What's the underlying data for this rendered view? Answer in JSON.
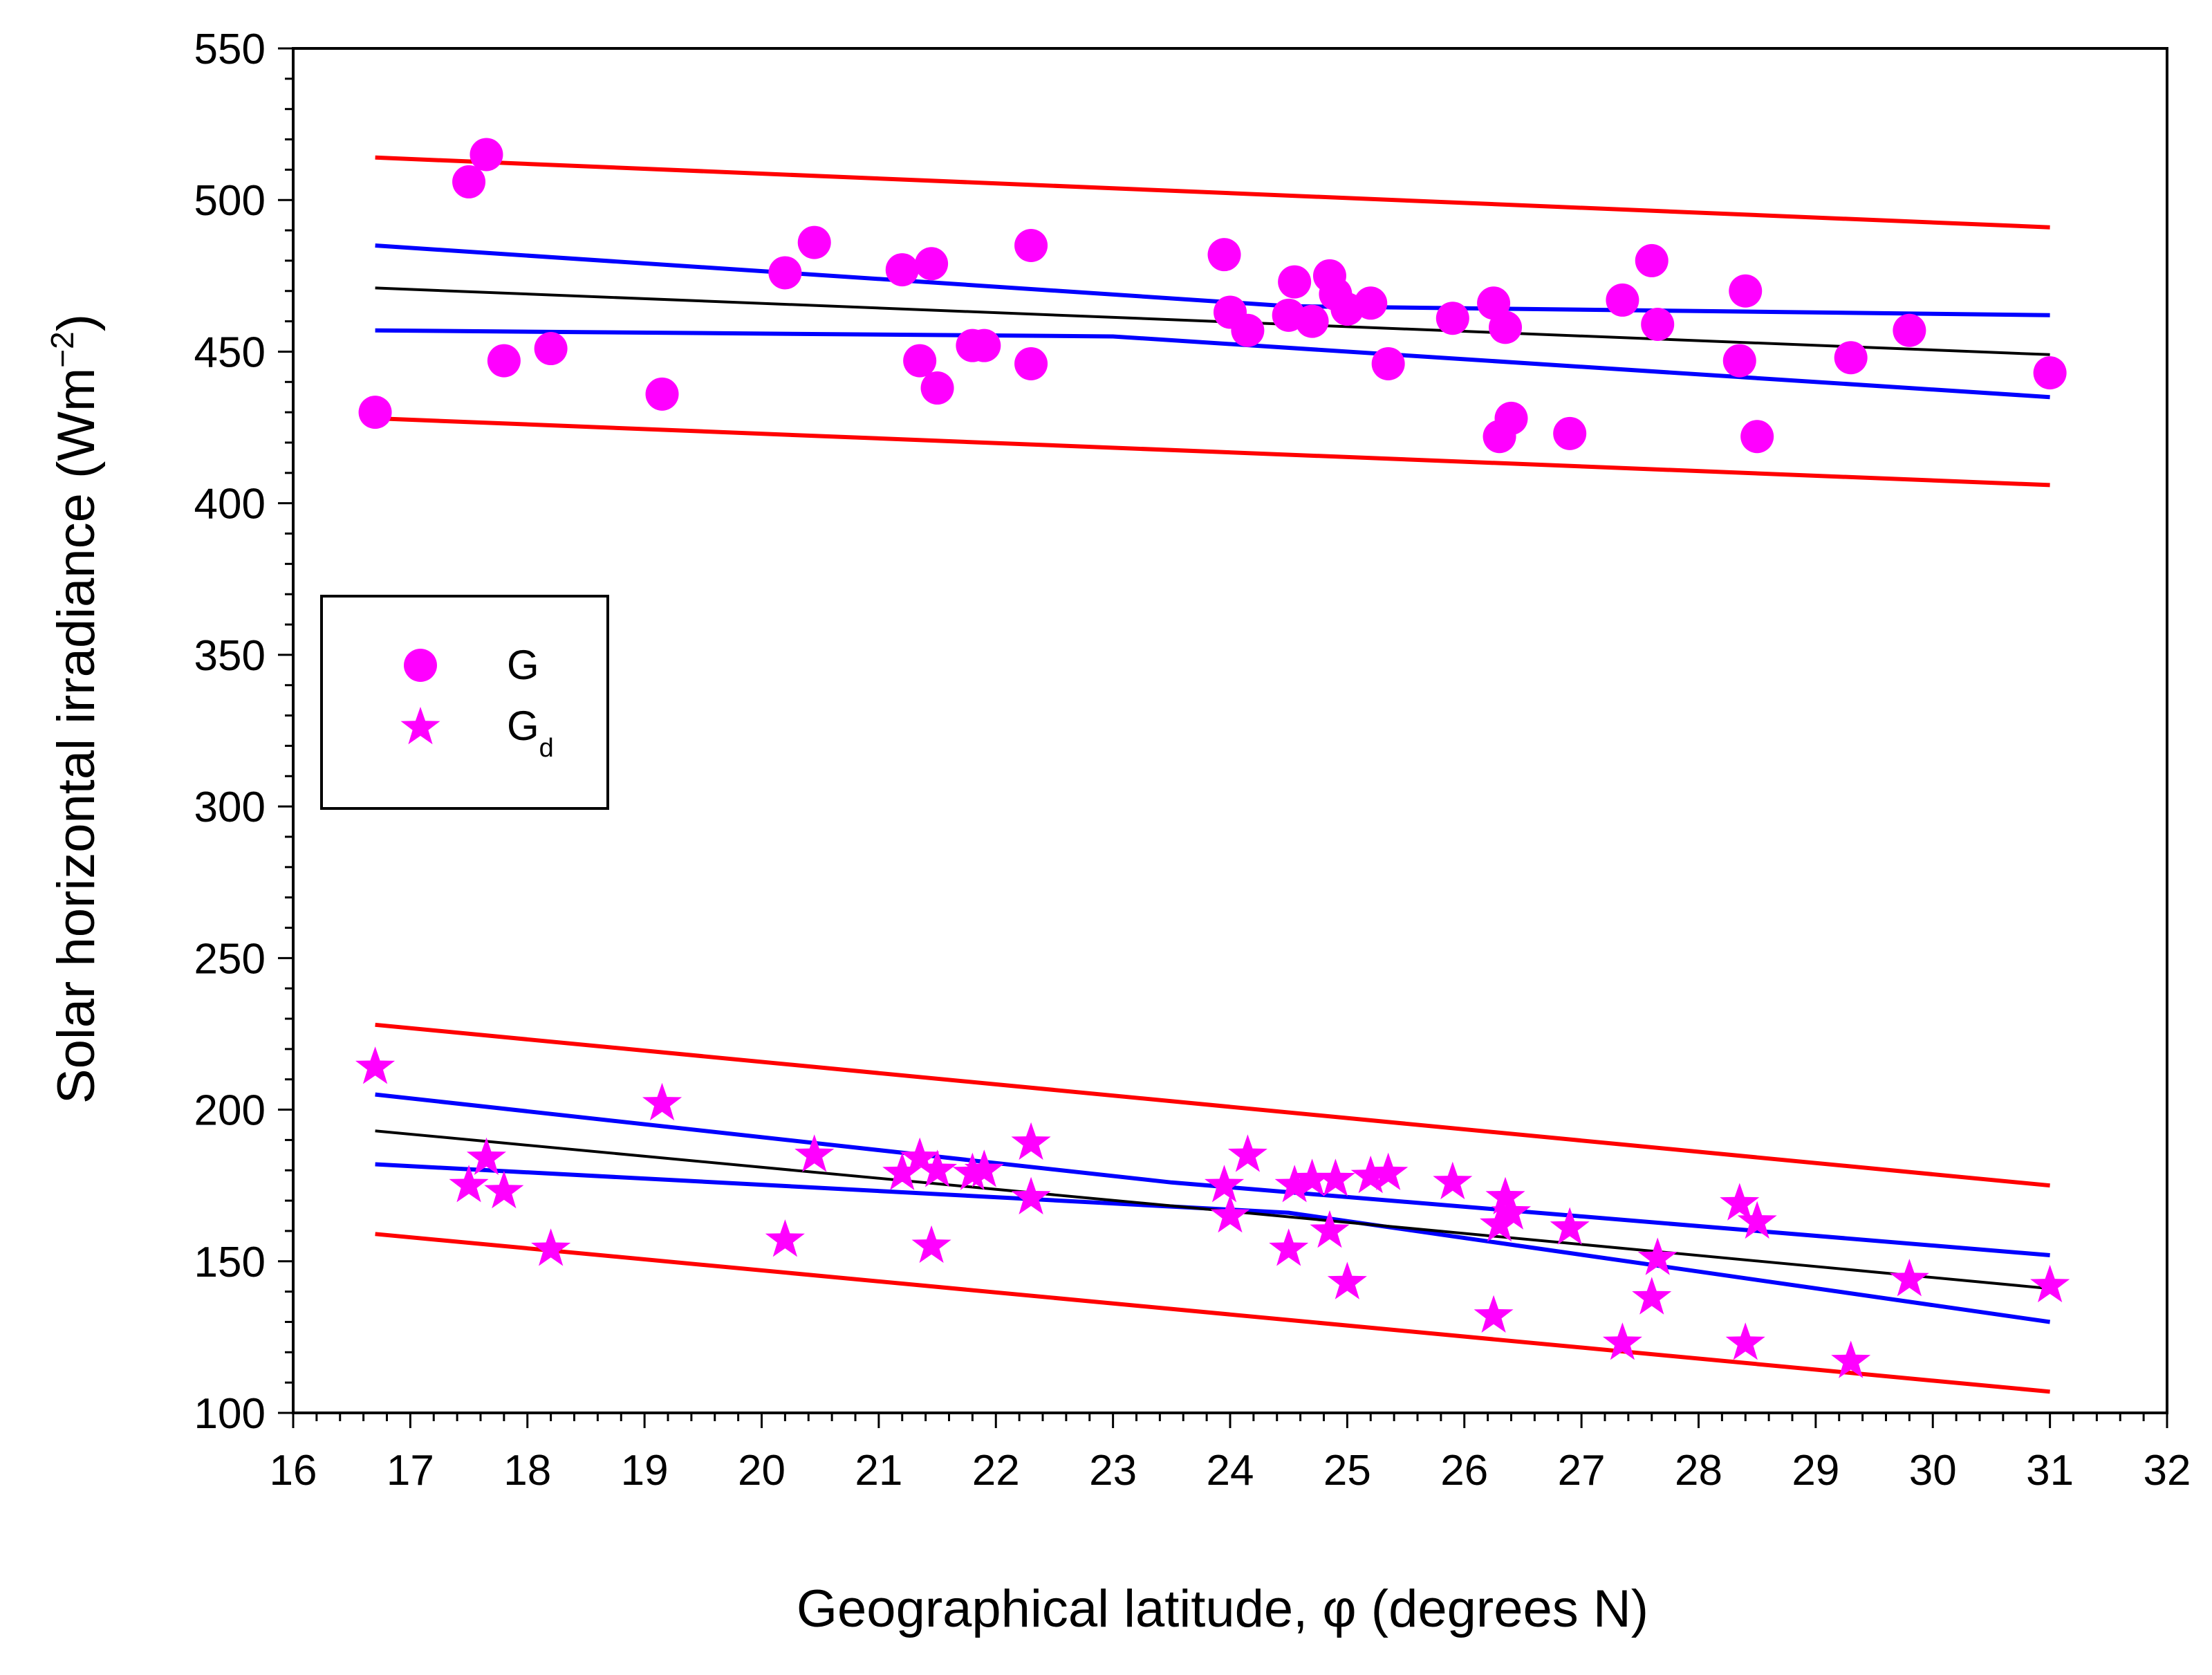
{
  "chart_data": {
    "type": "scatter",
    "xlabel": "Geographical latitude, φ (degrees N)",
    "ylabel": "Solar horizontal irradiance (Wm",
    "ylabel_sup": "−2",
    "ylabel_close": ")",
    "xlim": [
      16,
      32
    ],
    "ylim": [
      100,
      550
    ],
    "xticks": [
      16,
      17,
      18,
      19,
      20,
      21,
      22,
      23,
      24,
      25,
      26,
      27,
      28,
      29,
      30,
      31,
      32
    ],
    "yticks": [
      100,
      150,
      200,
      250,
      300,
      350,
      400,
      450,
      500,
      550
    ],
    "x_minor_step": 0.2,
    "y_minor_step": 10,
    "legend": {
      "position": "middle-left",
      "entries": [
        {
          "series": "G",
          "label": "G",
          "sub": "",
          "marker": "circle"
        },
        {
          "series": "Gd",
          "label": "G",
          "sub": "d",
          "marker": "star"
        }
      ]
    },
    "colors": {
      "marker": "#ff00ff",
      "regression": "#000000",
      "confidence": "#0000ff",
      "prediction": "#ff0000",
      "frame": "#000000"
    },
    "series": [
      {
        "name": "G",
        "marker": "circle",
        "points": [
          [
            16.7,
            430
          ],
          [
            17.5,
            506
          ],
          [
            17.65,
            515
          ],
          [
            17.8,
            447
          ],
          [
            18.2,
            451
          ],
          [
            19.15,
            436
          ],
          [
            20.2,
            476
          ],
          [
            20.45,
            486
          ],
          [
            21.2,
            477
          ],
          [
            21.35,
            447
          ],
          [
            21.45,
            479
          ],
          [
            21.5,
            438
          ],
          [
            21.8,
            452
          ],
          [
            21.9,
            452
          ],
          [
            22.3,
            485
          ],
          [
            22.3,
            446
          ],
          [
            23.95,
            482
          ],
          [
            24.0,
            463
          ],
          [
            24.15,
            457
          ],
          [
            24.5,
            462
          ],
          [
            24.55,
            473
          ],
          [
            24.7,
            460
          ],
          [
            24.85,
            475
          ],
          [
            24.9,
            469
          ],
          [
            25.0,
            464
          ],
          [
            25.2,
            466
          ],
          [
            25.35,
            446
          ],
          [
            25.9,
            461
          ],
          [
            26.25,
            466
          ],
          [
            26.3,
            422
          ],
          [
            26.35,
            458
          ],
          [
            26.4,
            428
          ],
          [
            26.9,
            423
          ],
          [
            27.35,
            467
          ],
          [
            27.6,
            480
          ],
          [
            27.65,
            459
          ],
          [
            28.35,
            447
          ],
          [
            28.4,
            470
          ],
          [
            28.5,
            422
          ],
          [
            29.3,
            448
          ],
          [
            29.8,
            457
          ],
          [
            31.0,
            443
          ]
        ],
        "regression": [
          [
            16.7,
            471
          ],
          [
            31.0,
            449
          ]
        ],
        "confidence_upper": [
          [
            16.7,
            485
          ],
          [
            24.5,
            465
          ],
          [
            31.0,
            462
          ]
        ],
        "confidence_lower": [
          [
            16.7,
            457
          ],
          [
            23.0,
            455
          ],
          [
            31.0,
            435
          ]
        ],
        "prediction_upper": [
          [
            16.7,
            514
          ],
          [
            31.0,
            491
          ]
        ],
        "prediction_lower": [
          [
            16.7,
            428
          ],
          [
            31.0,
            406
          ]
        ]
      },
      {
        "name": "Gd",
        "marker": "star",
        "points": [
          [
            16.7,
            214
          ],
          [
            17.5,
            175
          ],
          [
            17.65,
            184
          ],
          [
            17.8,
            173
          ],
          [
            18.2,
            154
          ],
          [
            19.15,
            202
          ],
          [
            20.2,
            157
          ],
          [
            20.45,
            185
          ],
          [
            21.2,
            179
          ],
          [
            21.35,
            184
          ],
          [
            21.45,
            155
          ],
          [
            21.5,
            180
          ],
          [
            21.8,
            179
          ],
          [
            21.9,
            180
          ],
          [
            22.3,
            189
          ],
          [
            22.3,
            171
          ],
          [
            23.95,
            175
          ],
          [
            24.0,
            165
          ],
          [
            24.15,
            185
          ],
          [
            24.5,
            154
          ],
          [
            24.55,
            175
          ],
          [
            24.7,
            177
          ],
          [
            24.85,
            160
          ],
          [
            24.9,
            177
          ],
          [
            25.0,
            143
          ],
          [
            25.2,
            178
          ],
          [
            25.35,
            179
          ],
          [
            25.9,
            176
          ],
          [
            26.25,
            132
          ],
          [
            26.3,
            162
          ],
          [
            26.35,
            171
          ],
          [
            26.4,
            166
          ],
          [
            26.9,
            161
          ],
          [
            27.35,
            123
          ],
          [
            27.6,
            138
          ],
          [
            27.65,
            151
          ],
          [
            28.35,
            169
          ],
          [
            28.4,
            123
          ],
          [
            28.5,
            163
          ],
          [
            29.3,
            117
          ],
          [
            29.8,
            144
          ],
          [
            31.0,
            142
          ]
        ],
        "regression": [
          [
            16.7,
            193
          ],
          [
            31.0,
            141
          ]
        ],
        "confidence_upper": [
          [
            16.7,
            205
          ],
          [
            23.5,
            176
          ],
          [
            31.0,
            152
          ]
        ],
        "confidence_lower": [
          [
            16.7,
            182
          ],
          [
            24.5,
            166
          ],
          [
            31.0,
            130
          ]
        ],
        "prediction_upper": [
          [
            16.7,
            228
          ],
          [
            31.0,
            175
          ]
        ],
        "prediction_lower": [
          [
            16.7,
            159
          ],
          [
            31.0,
            107
          ]
        ]
      }
    ]
  }
}
